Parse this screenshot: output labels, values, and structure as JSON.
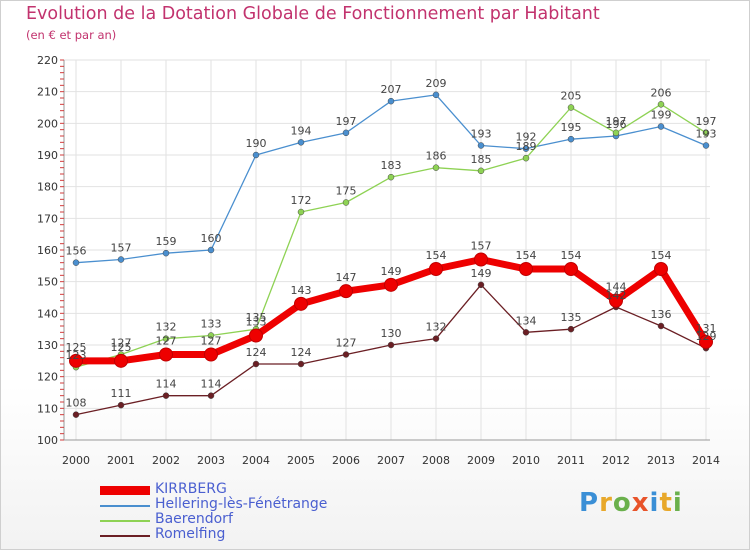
{
  "header": {
    "title": "Evolution de la Dotation Globale de Fonctionnement par Habitant",
    "subtitle": "(en € et par an)"
  },
  "logo": {
    "text": "Proxiti",
    "colors": [
      "#3a8fd6",
      "#e8a82a",
      "#6ab04c",
      "#e8532a",
      "#3a8fd6",
      "#e8a82a",
      "#6ab04c"
    ]
  },
  "chart_data": {
    "type": "line",
    "title": "Evolution de la Dotation Globale de Fonctionnement par Habitant",
    "subtitle": "(en € et par an)",
    "xlabel": "",
    "ylabel": "",
    "ylim": [
      100,
      220
    ],
    "yticks": [
      100,
      110,
      120,
      130,
      140,
      150,
      160,
      170,
      180,
      190,
      200,
      210,
      220
    ],
    "grid": true,
    "legend_position": "bottom-left",
    "categories": [
      "2000",
      "2001",
      "2002",
      "2003",
      "2004",
      "2005",
      "2006",
      "2007",
      "2008",
      "2009",
      "2010",
      "2011",
      "2012",
      "2013",
      "2014"
    ],
    "series": [
      {
        "name": "Hellering-lès-Fénétrange",
        "color": "#4a8fcf",
        "values": [
          156,
          157,
          159,
          160,
          190,
          194,
          197,
          207,
          209,
          193,
          192,
          195,
          196,
          199,
          193
        ]
      },
      {
        "name": "Baerendorf",
        "color": "#8ed254",
        "values": [
          123,
          127,
          132,
          133,
          135,
          172,
          175,
          183,
          186,
          185,
          189,
          205,
          197,
          206,
          197
        ]
      },
      {
        "name": "Romelfing",
        "color": "#6b1f24",
        "values": [
          108,
          111,
          114,
          114,
          124,
          124,
          127,
          130,
          132,
          149,
          134,
          135,
          142,
          136,
          129
        ]
      },
      {
        "name": "KIRRBERG",
        "color": "#ee0000",
        "values": [
          125,
          125,
          127,
          127,
          133,
          143,
          147,
          149,
          154,
          157,
          154,
          154,
          144,
          154,
          131
        ]
      }
    ],
    "data_labels": [
      {
        "series": "Hellering-lès-Fénétrange",
        "labels": [
          "156",
          "157",
          "159",
          "160",
          "190",
          "194",
          "197",
          "207",
          "209",
          "193",
          "192",
          "195",
          "196",
          "199",
          "193"
        ]
      },
      {
        "series": "Baerendorf",
        "labels": [
          "123",
          "127",
          "132",
          "133",
          "135",
          "172",
          "175",
          "183",
          "186",
          "185",
          "189",
          "205",
          "197",
          "206",
          "197"
        ]
      },
      {
        "series": "Romelfing",
        "labels": [
          "108",
          "111",
          "114",
          "114",
          "124",
          "124",
          "127",
          "130",
          "132",
          "149",
          "134",
          "135",
          "142",
          "136",
          "129"
        ]
      },
      {
        "series": "KIRRBERG",
        "labels": [
          "125",
          "125",
          "127",
          "127",
          "133",
          "143",
          "147",
          "149",
          "154",
          "157",
          "154",
          "154",
          "144",
          "154",
          "131"
        ]
      }
    ],
    "legend_order": [
      "KIRRBERG",
      "Hellering-lès-Fénétrange",
      "Baerendorf",
      "Romelfing"
    ]
  }
}
